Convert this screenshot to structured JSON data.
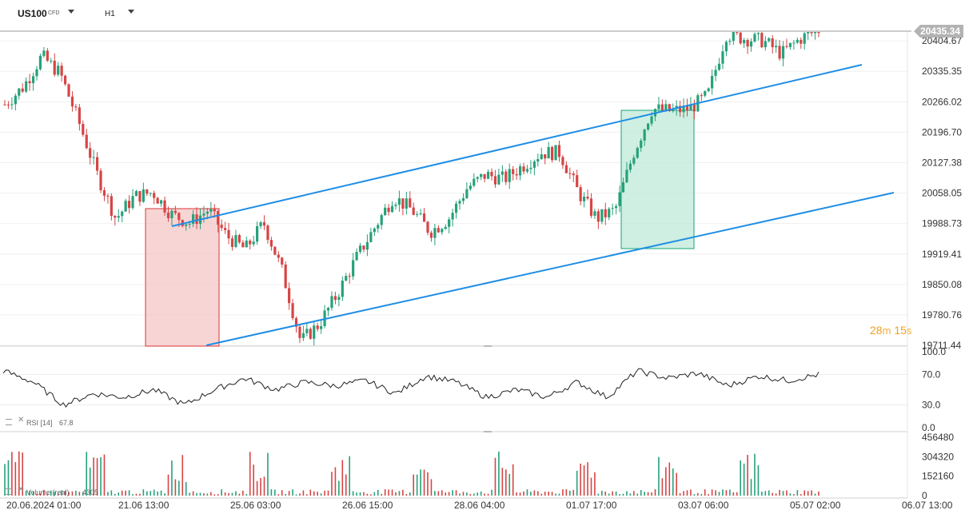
{
  "toolbar": {
    "symbol": "US100",
    "symbol_type": "CFD",
    "timeframe": "H1"
  },
  "current_price": "20435.34",
  "countdown": {
    "minutes": "28",
    "minutes_unit": "m",
    "seconds": "15",
    "seconds_unit": "s"
  },
  "rsi_panel": {
    "label": "RSI [14]",
    "value": "67.8",
    "ticks": [
      "100.0",
      "70.0",
      "30.0",
      "0.0"
    ]
  },
  "volume_panel": {
    "label": "Volume (real)",
    "value": "4305",
    "ticks": [
      "456480",
      "304320",
      "152160",
      "0"
    ]
  },
  "time_axis": [
    "20.06.2024  01:00",
    "21.06  13:00",
    "25.06  03:00",
    "26.06  15:00",
    "28.06  04:00",
    "01.07  17:00",
    "03.07  06:00",
    "05.07  02:00",
    "06.07  13:00"
  ],
  "colors": {
    "up": "#26a17b",
    "down": "#d64545",
    "channel": "#1f8ee6",
    "red_box": "#f4c7c7",
    "green_box": "#bfe9d8"
  },
  "chart_data": {
    "type": "candlestick",
    "series": [
      {
        "name": "US100"
      }
    ],
    "y_ticks": [
      20404.67,
      20335.35,
      20266.02,
      20196.7,
      20127.38,
      20058.05,
      19988.73,
      19919.41,
      19850.08,
      19780.76,
      19711.44
    ],
    "ylim": [
      19711.44,
      20425
    ],
    "close_path": [
      20260,
      20300,
      20370,
      20330,
      20220,
      20100,
      20000,
      20050,
      20060,
      20010,
      19990,
      20020,
      19960,
      19930,
      19990,
      19880,
      19720,
      19760,
      19830,
      19910,
      19980,
      20050,
      20020,
      19970,
      20000,
      20070,
      20100,
      20090,
      20120,
      20150,
      20150,
      20060,
      20000,
      20020,
      20150,
      20250,
      20245,
      20250,
      20280,
      20420,
      20410,
      20405,
      20375,
      20410,
      20430
    ],
    "candle_count": 230,
    "rsi_path": [
      75,
      60,
      30,
      45,
      40,
      50,
      30,
      50,
      65,
      50,
      60,
      55,
      62,
      45,
      68,
      60,
      40,
      50,
      40,
      60,
      40,
      75,
      65,
      72,
      55,
      68,
      62,
      70
    ],
    "volume_peaks": [
      {
        "x": 0.08,
        "v": 390000,
        "dir": "down"
      },
      {
        "x": 0.17,
        "v": 330000,
        "dir": "down"
      },
      {
        "x": 0.25,
        "v": 456000,
        "dir": "down"
      }
    ]
  }
}
